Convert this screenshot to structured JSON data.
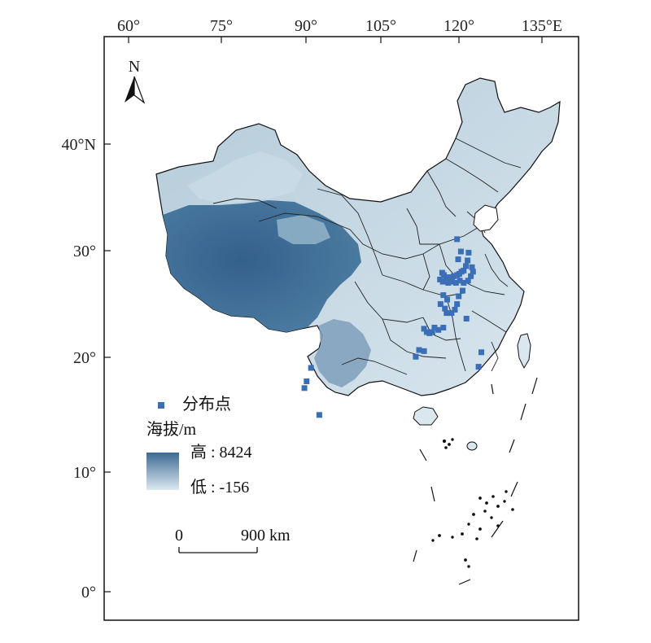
{
  "map": {
    "longitude_labels": [
      "60°",
      "75°",
      "90°",
      "105°",
      "120°",
      "135°E"
    ],
    "latitude_labels": [
      "40°N",
      "30°",
      "20°",
      "10°",
      "0°"
    ],
    "north_arrow_label": "N"
  },
  "legend": {
    "points_label": "分布点",
    "points_color": "#3a6fb8",
    "elevation_title": "海拔/m",
    "high_label": "高 : 8424",
    "low_label": "低 : -156",
    "gradient_colors": [
      "#3d6a93",
      "#dce9f1"
    ]
  },
  "scale_bar": {
    "zero_label": "0",
    "distance_label": "900 km"
  },
  "distribution_points": [
    [
      121.5,
      29.6
    ],
    [
      121.2,
      29.1
    ],
    [
      120.8,
      28.7
    ],
    [
      120.4,
      28.6
    ],
    [
      120.0,
      28.4
    ],
    [
      119.6,
      28.3
    ],
    [
      119.0,
      28.2
    ],
    [
      118.5,
      28.1
    ],
    [
      118.1,
      28.0
    ],
    [
      117.6,
      28.1
    ],
    [
      117.2,
      28.3
    ],
    [
      116.9,
      28.5
    ],
    [
      116.5,
      27.9
    ],
    [
      117.0,
      27.7
    ],
    [
      118.0,
      27.6
    ],
    [
      118.7,
      27.7
    ],
    [
      119.4,
      27.6
    ],
    [
      120.1,
      27.8
    ],
    [
      120.8,
      27.6
    ],
    [
      121.6,
      27.8
    ],
    [
      122.1,
      28.2
    ],
    [
      122.5,
      28.6
    ],
    [
      122.3,
      29.0
    ],
    [
      121.7,
      30.3
    ],
    [
      120.3,
      30.4
    ],
    [
      119.8,
      29.7
    ],
    [
      120.6,
      26.9
    ],
    [
      119.9,
      26.4
    ],
    [
      119.6,
      25.7
    ],
    [
      119.2,
      25.2
    ],
    [
      118.6,
      24.9
    ],
    [
      117.7,
      24.9
    ],
    [
      117.4,
      25.3
    ],
    [
      117.8,
      26.1
    ],
    [
      117.1,
      26.5
    ],
    [
      116.6,
      25.7
    ],
    [
      115.5,
      23.6
    ],
    [
      115.1,
      23.2
    ],
    [
      114.6,
      23.1
    ],
    [
      114.1,
      23.2
    ],
    [
      113.6,
      23.5
    ],
    [
      116.2,
      23.4
    ],
    [
      117.1,
      23.6
    ],
    [
      119.6,
      31.5
    ],
    [
      121.3,
      24.4
    ],
    [
      112.7,
      21.6
    ],
    [
      113.6,
      21.5
    ],
    [
      112.1,
      21.0
    ],
    [
      92.3,
      18.8
    ],
    [
      91.9,
      18.2
    ],
    [
      93.1,
      20.0
    ],
    [
      94.6,
      15.8
    ],
    [
      123.5,
      20.1
    ],
    [
      124.0,
      21.4
    ]
  ]
}
